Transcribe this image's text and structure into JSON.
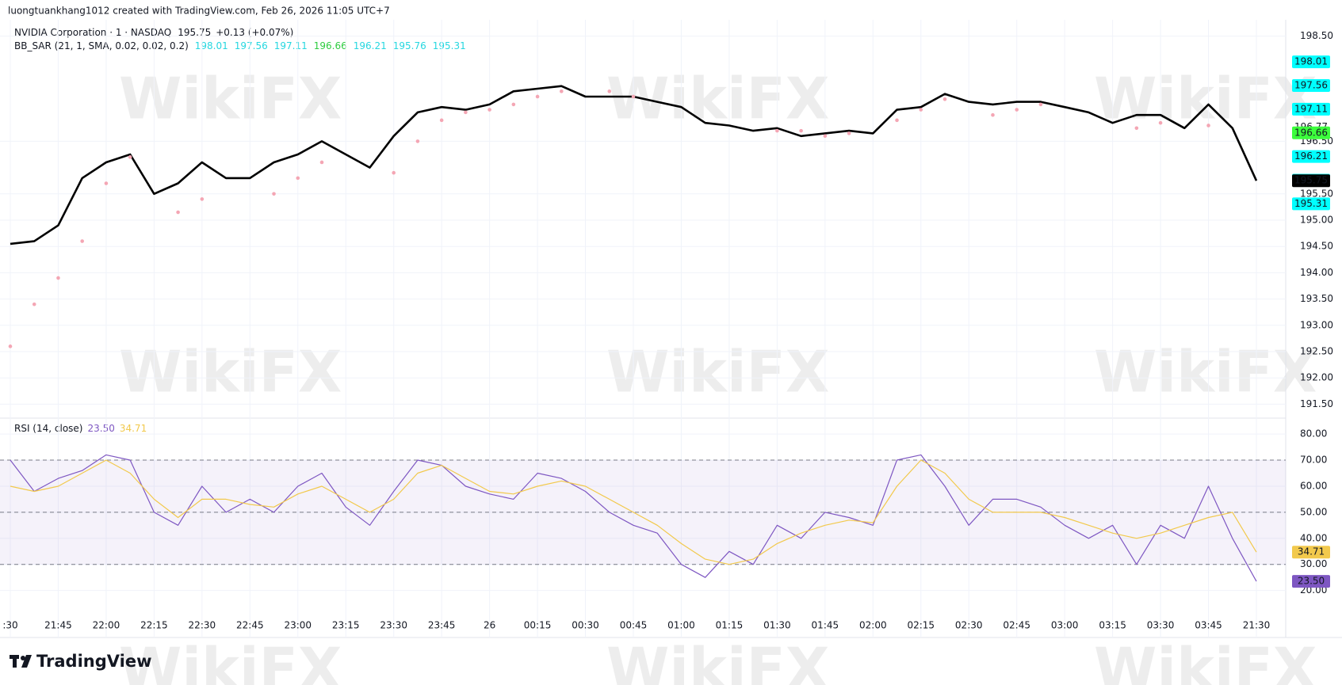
{
  "header": {
    "credit": "luongtuankhang1012 created with TradingView.com, Feb 26, 2026 11:05 UTC+7",
    "symbol": "NVIDIA Corporation · 1 · NASDAQ",
    "last": "195.75",
    "change": "+0.13 (+0.07%)",
    "indicator": "BB_SAR (21, 1, SMA, 0.02, 0.02, 0.2)",
    "indicator_values": [
      {
        "text": "198.01",
        "color": "#26d7e0"
      },
      {
        "text": "197.56",
        "color": "#26d7e0"
      },
      {
        "text": "197.11",
        "color": "#26d7e0"
      },
      {
        "text": "196.66",
        "color": "#2ecc40"
      },
      {
        "text": "196.21",
        "color": "#26d7e0"
      },
      {
        "text": "195.76",
        "color": "#26d7e0"
      },
      {
        "text": "195.31",
        "color": "#26d7e0"
      }
    ],
    "rsi_title": "RSI (14, close)",
    "rsi_values": [
      {
        "text": "23.50",
        "color": "#7e57c2"
      },
      {
        "text": "34.71",
        "color": "#f2c94c"
      }
    ],
    "brand": "TradingView",
    "watermark": "WikiFX"
  },
  "chart_data": [
    {
      "type": "line",
      "ylim": [
        191.25,
        198.78
      ],
      "yticks": [
        {
          "value": 191.5,
          "label": "191.50"
        },
        {
          "value": 192,
          "label": "192.00"
        },
        {
          "value": 192.5,
          "label": "192.50"
        },
        {
          "value": 193,
          "label": "193.00"
        },
        {
          "value": 193.5,
          "label": "193.50"
        },
        {
          "value": 194,
          "label": "194.00"
        },
        {
          "value": 194.5,
          "label": "194.50"
        },
        {
          "value": 195,
          "label": "195.00"
        },
        {
          "value": 195.5,
          "label": "195.50"
        },
        {
          "value": 196.5,
          "label": "196.50"
        },
        {
          "value": 198.5,
          "label": "198.50"
        }
      ],
      "grid": true,
      "series": [
        {
          "name": "NVIDIA Corporation",
          "color": "#000000",
          "marker": "line",
          "values": [
            194.55,
            194.6,
            194.9,
            195.8,
            196.1,
            196.25,
            195.5,
            195.7,
            196.1,
            195.8,
            195.8,
            196.1,
            196.25,
            196.5,
            196.25,
            196.0,
            196.6,
            197.05,
            197.15,
            197.1,
            197.2,
            197.45,
            197.5,
            197.55,
            197.35,
            197.35,
            197.35,
            197.25,
            197.15,
            196.85,
            196.8,
            196.7,
            196.75,
            196.6,
            196.65,
            196.7,
            196.65,
            197.1,
            197.15,
            197.4,
            197.25,
            197.2,
            197.25,
            197.25,
            197.15,
            197.05,
            196.85,
            197.0,
            197.0,
            196.75,
            197.2,
            196.75,
            195.75
          ]
        },
        {
          "name": "BB_SAR",
          "color": "#f4a6b4",
          "marker": "dots",
          "values": [
            192.6,
            193.4,
            193.9,
            194.6,
            195.7,
            196.2,
            null,
            195.15,
            195.4,
            null,
            null,
            195.5,
            195.8,
            196.1,
            null,
            null,
            195.9,
            196.5,
            196.9,
            197.05,
            197.1,
            197.2,
            197.35,
            197.45,
            null,
            197.45,
            197.35,
            null,
            null,
            null,
            null,
            null,
            196.7,
            196.7,
            196.6,
            196.65,
            null,
            196.9,
            197.1,
            197.3,
            null,
            197.0,
            197.1,
            197.2,
            null,
            null,
            null,
            196.75,
            196.85,
            null,
            196.8,
            null,
            null
          ]
        }
      ],
      "badges": [
        {
          "value": 198.01,
          "color": "#00ffff",
          "text_color": "#000000"
        },
        {
          "value": 197.56,
          "color": "#00ffff",
          "text_color": "#000000"
        },
        {
          "value": 197.11,
          "color": "#00ffff",
          "text_color": "#000000"
        },
        {
          "value": 196.77,
          "color": "#ffffff",
          "text_color": "#131722"
        },
        {
          "value": 196.66,
          "color": "#3cff3c",
          "text_color": "#000000"
        },
        {
          "value": 196.21,
          "color": "#00ffff",
          "text_color": "#000000"
        },
        {
          "value": 195.76,
          "color": "#00ffff",
          "text_color": "#000000"
        },
        {
          "value": 195.75,
          "color": "#000000",
          "text_color": "#ffffff"
        },
        {
          "value": 195.31,
          "color": "#00ffff",
          "text_color": "#000000"
        }
      ]
    },
    {
      "type": "line",
      "categories": [
        ":30",
        null,
        "21:45",
        null,
        "22:00",
        null,
        "22:15",
        null,
        "22:30",
        null,
        "22:45",
        null,
        "23:00",
        null,
        "23:15",
        null,
        "23:30",
        null,
        "23:45",
        null,
        "26",
        null,
        "00:15",
        null,
        "00:30",
        null,
        "00:45",
        null,
        "01:00",
        null,
        "01:15",
        null,
        "01:30",
        null,
        "01:45",
        null,
        "02:00",
        null,
        "02:15",
        null,
        "02:30",
        null,
        "02:45",
        null,
        "03:00",
        null,
        "03:15",
        null,
        "03:30",
        null,
        "03:45",
        null,
        "21:30"
      ],
      "ylim": [
        12,
        85.5
      ],
      "yticks": [
        {
          "value": 20,
          "label": "20.00"
        },
        {
          "value": 30,
          "label": "30.00"
        },
        {
          "value": 40,
          "label": "40.00"
        },
        {
          "value": 50,
          "label": "50.00"
        },
        {
          "value": 60,
          "label": "60.00"
        },
        {
          "value": 70,
          "label": "70.00"
        },
        {
          "value": 80,
          "label": "80.00"
        }
      ],
      "grid": true,
      "band": [
        30,
        70
      ],
      "levels": [
        30,
        50,
        70
      ],
      "series": [
        {
          "name": "RSI",
          "color": "#7e57c2",
          "values": [
            70,
            58,
            63,
            66,
            72,
            70,
            50,
            45,
            60,
            50,
            55,
            50,
            60,
            65,
            52,
            45,
            58,
            70,
            68,
            60,
            57,
            55,
            65,
            63,
            58,
            50,
            45,
            42,
            30,
            25,
            35,
            30,
            45,
            40,
            50,
            48,
            45,
            70,
            72,
            60,
            45,
            55,
            55,
            52,
            45,
            40,
            45,
            30,
            45,
            40,
            60,
            40,
            23.5
          ]
        },
        {
          "name": "RSI MA",
          "color": "#f2c94c",
          "values": [
            60,
            58,
            60,
            65,
            70,
            65,
            55,
            48,
            55,
            55,
            53,
            52,
            57,
            60,
            55,
            50,
            55,
            65,
            68,
            63,
            58,
            57,
            60,
            62,
            60,
            55,
            50,
            45,
            38,
            32,
            30,
            32,
            38,
            42,
            45,
            47,
            46,
            60,
            70,
            65,
            55,
            50,
            50,
            50,
            48,
            45,
            42,
            40,
            42,
            45,
            48,
            50,
            34.71
          ]
        }
      ],
      "badges": [
        {
          "value": 34.71,
          "label": "34.71",
          "color": "#f2c94c",
          "text_color": "#000000"
        },
        {
          "value": 23.5,
          "label": "23.50",
          "color": "#7e57c2",
          "text_color": "#ffffff"
        }
      ]
    }
  ]
}
